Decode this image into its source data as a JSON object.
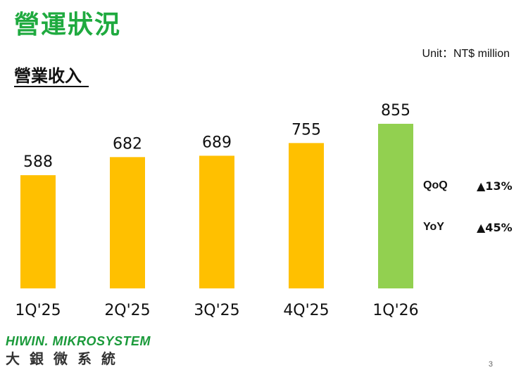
{
  "page": {
    "title": "營運狀況",
    "section_heading": "營業收入",
    "unit": "Unit：NT$ million",
    "page_number": "3"
  },
  "metrics": [
    {
      "label": "QoQ",
      "value": "▲13%"
    },
    {
      "label": "YoY",
      "value": "▲45%"
    }
  ],
  "logo": {
    "en": "HIWIN. MIKROSYSTEM",
    "zh": "大銀微系統"
  },
  "colors": {
    "title_green": "#1faa3f",
    "bar_yellow": "#ffc000",
    "bar_green": "#92d050"
  },
  "chart_data": {
    "type": "bar",
    "categories": [
      "1Q'25",
      "2Q'25",
      "3Q'25",
      "4Q'25",
      "1Q'26"
    ],
    "values": [
      588,
      682,
      689,
      755,
      855
    ],
    "bar_colors": [
      "#ffc000",
      "#ffc000",
      "#ffc000",
      "#ffc000",
      "#92d050"
    ],
    "title": "",
    "xlabel": "",
    "ylabel": "",
    "data_labels": true,
    "grid": false
  }
}
